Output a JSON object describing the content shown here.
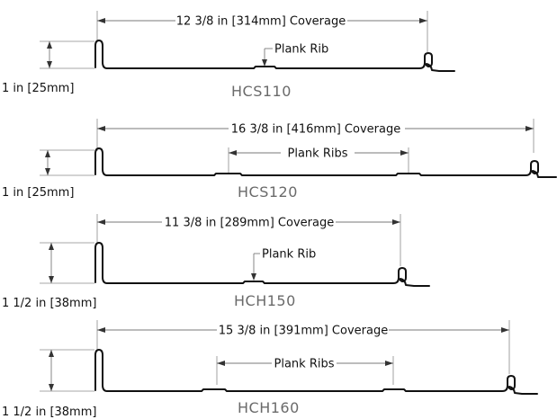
{
  "panels": [
    {
      "name": "HCS110",
      "coverage_label": "12 3/8 in [314mm] Coverage",
      "height_label": "1 in [25mm]",
      "rib_label": "Plank Rib"
    },
    {
      "name": "HCS120",
      "coverage_label": "16 3/8 in [416mm] Coverage",
      "height_label": "1 in [25mm]",
      "rib_label": "Plank Ribs"
    },
    {
      "name": "HCH150",
      "coverage_label": "11 3/8 in [289mm] Coverage",
      "height_label": "1 1/2 in [38mm]",
      "rib_label": "Plank Rib"
    },
    {
      "name": "HCH160",
      "coverage_label": "15 3/8 in [391mm] Coverage",
      "height_label": "1 1/2 in [38mm]",
      "rib_label": "Plank Ribs"
    }
  ],
  "colors": {
    "profile": "#111111",
    "dimension": "#7a7a7a",
    "panel_name": "#6a6a6a"
  }
}
